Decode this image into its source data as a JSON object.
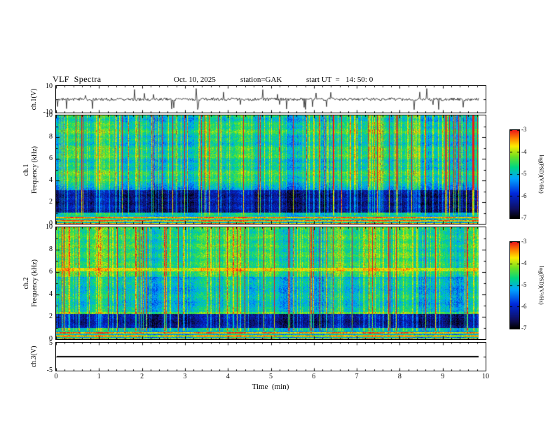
{
  "header": {
    "title": "VLF  Spectra",
    "date": "Oct. 10, 2025",
    "station": "station=GAK",
    "start_ut": "start UT  =   14: 50: 0"
  },
  "panels": {
    "ch1_wave": {
      "label": "ch.1(V)",
      "ylim": [
        -10,
        10
      ],
      "yticks": [
        "10",
        "-10"
      ]
    },
    "ch1_spec": {
      "label_ch": "ch.1",
      "label_freq": "Frequency (kHz)",
      "ylim": [
        0,
        10
      ],
      "yticks": [
        0,
        2,
        4,
        6,
        8,
        10
      ]
    },
    "ch2_spec": {
      "label_ch": "ch.2",
      "label_freq": "Frequency (kHz)",
      "ylim": [
        0,
        10
      ],
      "yticks": [
        0,
        2,
        4,
        6,
        8,
        10
      ]
    },
    "ch3_wave": {
      "label": "ch.3(V)",
      "ylim": [
        -5,
        5
      ],
      "yticks": [
        "5",
        "-5"
      ]
    }
  },
  "xaxis": {
    "label": "Time  (min)",
    "ticks": [
      0,
      1,
      2,
      3,
      4,
      5,
      6,
      7,
      8,
      9,
      10
    ],
    "xlim": [
      0,
      10
    ]
  },
  "colorbar": {
    "label": "log(PSD)(V²/Hz)",
    "ticks": [
      -3,
      -4,
      -5,
      -6,
      -7
    ],
    "range": [
      -7,
      -3
    ]
  },
  "chart_data": [
    {
      "type": "line",
      "name": "ch.1 voltage waveform",
      "ylabel": "ch.1(V)",
      "xlim": [
        0,
        10
      ],
      "ylim": [
        -10,
        10
      ],
      "description": "Noisy trace centered on 0 V with many impulsive spikes reaching roughly ±8 V across the full 0–9.8 min record."
    },
    {
      "type": "heatmap",
      "name": "ch.1 VLF spectrogram",
      "ylabel": "Frequency (kHz)",
      "xlim": [
        0,
        10
      ],
      "ylim": [
        0,
        10
      ],
      "yticks": [
        0,
        2,
        4,
        6,
        8,
        10
      ],
      "colorbar": {
        "label": "log(PSD)(V²/Hz)",
        "range": [
          -7,
          -3
        ],
        "ticks": [
          -3,
          -4,
          -5,
          -6,
          -7
        ]
      },
      "features": [
        "dense broadband vertical streaks (impulsive sferics) spanning all frequencies, many reaching red (log PSD near -3)",
        "low-power dark blue/black band from about 1 to 3 kHz (log PSD near -7)",
        "bright quasi-horizontal striped band below about 1 kHz (log PSD -4 to -3)",
        "diffuse green/cyan background above 3 kHz (log PSD about -5)"
      ]
    },
    {
      "type": "heatmap",
      "name": "ch.2 VLF spectrogram",
      "ylabel": "Frequency (kHz)",
      "xlim": [
        0,
        10
      ],
      "ylim": [
        0,
        10
      ],
      "yticks": [
        0,
        2,
        4,
        6,
        8,
        10
      ],
      "colorbar": {
        "label": "log(PSD)(V²/Hz)",
        "range": [
          -7,
          -3
        ],
        "ticks": [
          -3,
          -4,
          -5,
          -6,
          -7
        ]
      },
      "features": [
        "dense broadband vertical streaks (impulsive sferics)",
        "persistent narrow bright emission line near 6.2 kHz (log PSD about -4, yellow/orange)",
        "narrow bright green line near 2.3 kHz",
        "dark low-power band from about 1 to 2 kHz (log PSD near -7)",
        "bright striped band below about 1 kHz",
        "cyan/green diffuse background from 2 to 10 kHz (log PSD -5 to -4.5)"
      ]
    },
    {
      "type": "line",
      "name": "ch.3 voltage waveform",
      "ylabel": "ch.3(V)",
      "xlim": [
        0,
        10
      ],
      "ylim": [
        -5,
        5
      ],
      "description": "Flat thick trace at about 0 V for the entire interval."
    }
  ]
}
